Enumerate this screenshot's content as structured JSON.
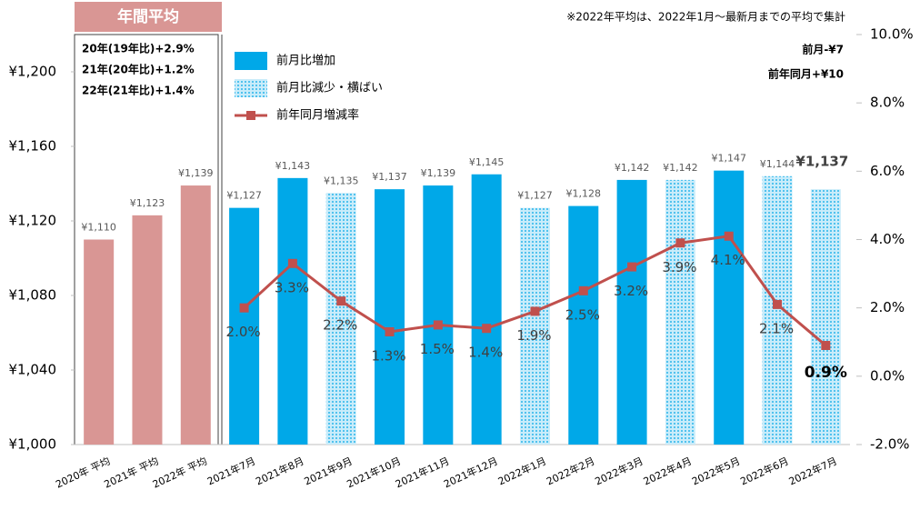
{
  "chart_data": {
    "type": "bar",
    "header": "年間平均",
    "annotations": [
      "20年(19年比)+2.9%",
      "21年(20年比)+1.2%",
      "22年(21年比)+1.4%"
    ],
    "note": "※2022年平均は、2022年1月～最新月までの平均で集計",
    "summary": [
      "前月-¥7",
      "前年同月+¥10"
    ],
    "categories": [
      "2020年 平均",
      "2021年 平均",
      "2022年 平均",
      "2021年7月",
      "2021年8月",
      "2021年9月",
      "2021年10月",
      "2021年11月",
      "2021年12月",
      "2022年1月",
      "2022年2月",
      "2022年3月",
      "2022年4月",
      "2022年5月",
      "2022年6月",
      "2022年7月"
    ],
    "series": [
      {
        "color": "#d99694",
        "values": [
          1110,
          1123,
          1139,
          null,
          null,
          null,
          null,
          null,
          null,
          null,
          null,
          null,
          null,
          null,
          null,
          null
        ],
        "value_labels": [
          "¥1,110",
          "¥1,123",
          "¥1,139",
          null,
          null,
          null,
          null,
          null,
          null,
          null,
          null,
          null,
          null,
          null,
          null,
          null
        ]
      },
      {
        "name": "前月比増加",
        "color": "#00a8e8",
        "values": [
          null,
          null,
          null,
          1127,
          1143,
          null,
          1137,
          1139,
          1145,
          null,
          1128,
          1142,
          null,
          1147,
          null,
          null
        ],
        "value_labels": [
          null,
          null,
          null,
          "¥1,127",
          "¥1,143",
          null,
          "¥1,137",
          "¥1,139",
          "¥1,145",
          null,
          "¥1,128",
          "¥1,142",
          null,
          "¥1,147",
          null,
          null
        ]
      },
      {
        "name": "前月比減少・横ばい",
        "color": "#00a8e8",
        "pattern": "dots",
        "values": [
          null,
          null,
          null,
          null,
          null,
          1135,
          null,
          null,
          null,
          1127,
          null,
          null,
          1142,
          null,
          1144,
          1137
        ],
        "value_labels": [
          null,
          null,
          null,
          null,
          null,
          "¥1,135",
          null,
          null,
          null,
          "¥1,127",
          null,
          null,
          "¥1,142",
          null,
          "¥1,144",
          "¥1,137"
        ]
      },
      {
        "name": "前年同月増減率",
        "type": "line",
        "axis": "y2",
        "color": "#c0504d",
        "values": [
          null,
          null,
          null,
          2.0,
          3.3,
          2.2,
          1.3,
          1.5,
          1.4,
          1.9,
          2.5,
          3.2,
          3.9,
          4.1,
          2.1,
          0.9
        ],
        "value_labels": [
          null,
          null,
          null,
          "2.0%",
          "3.3%",
          "2.2%",
          "1.3%",
          "1.5%",
          "1.4%",
          "1.9%",
          "2.5%",
          "3.2%",
          "3.9%",
          "4.1%",
          "2.1%",
          "0.9%"
        ]
      }
    ],
    "ylim": [
      1000,
      1220
    ],
    "yticks": [
      {
        "value": 1000,
        "label": "¥1,000"
      },
      {
        "value": 1040,
        "label": "¥1,040"
      },
      {
        "value": 1080,
        "label": "¥1,080"
      },
      {
        "value": 1120,
        "label": "¥1,120"
      },
      {
        "value": 1160,
        "label": "¥1,160"
      },
      {
        "value": 1200,
        "label": "¥1,200"
      }
    ],
    "y2lim": [
      -2,
      10
    ],
    "y2ticks": [
      {
        "value": -2,
        "label": "-2.0%"
      },
      {
        "value": 0,
        "label": "0.0%"
      },
      {
        "value": 2,
        "label": "2.0%"
      },
      {
        "value": 4,
        "label": "4.0%"
      },
      {
        "value": 6,
        "label": "6.0%"
      },
      {
        "value": 8,
        "label": "8.0%"
      },
      {
        "value": 10,
        "label": "10.0%"
      }
    ],
    "grid": false
  }
}
